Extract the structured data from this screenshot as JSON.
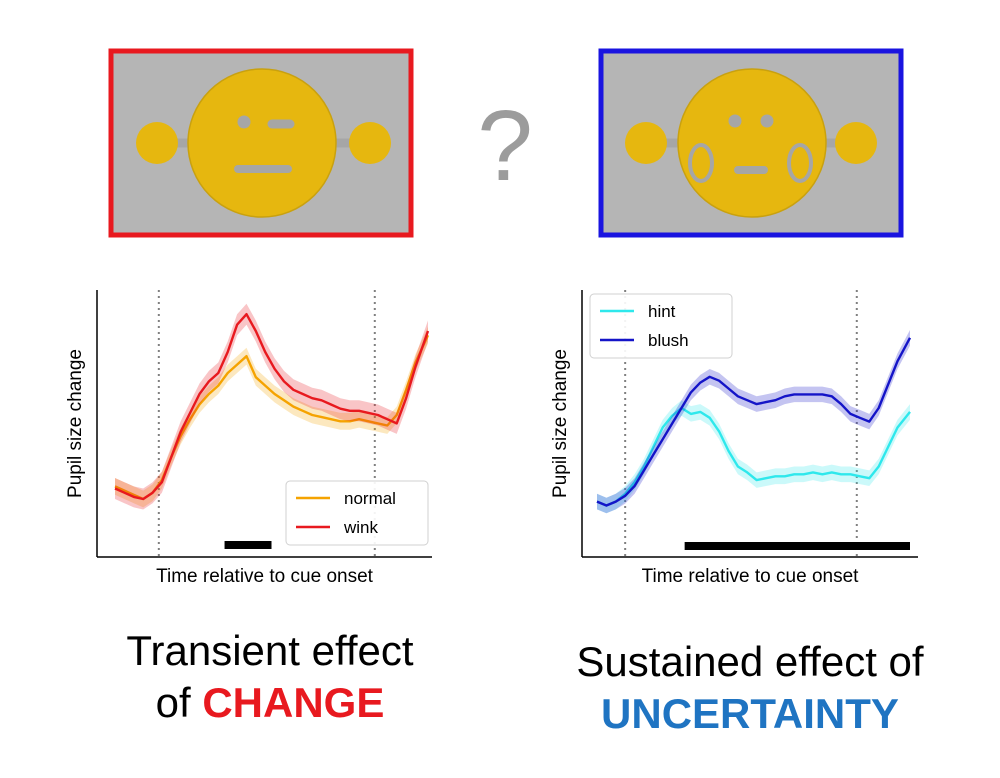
{
  "question_mark": "?",
  "panels": [
    {
      "id": "change",
      "frame_color": "#e8191f",
      "face": {
        "left_eye": "dot",
        "right_eye": "dash",
        "mouth": "wide",
        "blush": false
      },
      "caption_line1": "Transient effect",
      "caption_prefix": "of ",
      "caption_keyword": "CHANGE",
      "keyword_color": "#e8191f"
    },
    {
      "id": "uncertainty",
      "frame_color": "#1a14e0",
      "face": {
        "left_eye": "dot",
        "right_eye": "dot",
        "mouth": "narrow",
        "blush": true
      },
      "caption_line1": "Sustained effect of",
      "caption_prefix": "",
      "caption_keyword": "UNCERTAINTY",
      "keyword_color": "#1f74c2"
    }
  ],
  "colors": {
    "background_gray": "#b5b5b5",
    "face_yellow": "#e6b70f",
    "feature_gray": "#a6a6a6",
    "normal": "#f5a300",
    "wink": "#e8191f",
    "hint": "#2ee8ec",
    "blush": "#1414c8"
  },
  "chart_data": [
    {
      "type": "line",
      "xlabel": "Time relative to cue onset",
      "ylabel": "Pupil size change",
      "xlim": [
        0,
        100
      ],
      "ylim": [
        0,
        100
      ],
      "x_ticks_shown": false,
      "y_ticks_shown": false,
      "vlines": [
        14,
        83
      ],
      "legend": "lower-right",
      "significance_bar": [
        35,
        50
      ],
      "x": [
        0,
        3,
        6,
        9,
        12,
        15,
        18,
        21,
        24,
        27,
        30,
        33,
        36,
        39,
        42,
        45,
        48,
        51,
        54,
        57,
        60,
        63,
        66,
        69,
        72,
        75,
        78,
        81,
        84,
        87,
        90,
        93,
        96,
        100
      ],
      "series": [
        {
          "name": "normal",
          "color": "#f5a300",
          "values": [
            16,
            14,
            12,
            10,
            13,
            19,
            30,
            40,
            48,
            55,
            60,
            64,
            70,
            74,
            78,
            68,
            64,
            60,
            57,
            54,
            52,
            50,
            49,
            48,
            47,
            47,
            48,
            47,
            46,
            45,
            50,
            62,
            75,
            88
          ],
          "band": 4
        },
        {
          "name": "wink",
          "color": "#e8191f",
          "values": [
            15,
            13,
            11,
            10,
            13,
            18,
            30,
            42,
            51,
            60,
            66,
            70,
            80,
            93,
            98,
            90,
            80,
            72,
            66,
            62,
            60,
            58,
            57,
            55,
            53,
            52,
            52,
            51,
            50,
            48,
            46,
            58,
            73,
            90
          ],
          "band": 5
        }
      ]
    },
    {
      "type": "line",
      "xlabel": "Time relative to cue onset",
      "ylabel": "Pupil size change",
      "xlim": [
        0,
        100
      ],
      "ylim": [
        0,
        100
      ],
      "x_ticks_shown": false,
      "y_ticks_shown": false,
      "vlines": [
        9,
        83
      ],
      "legend": "upper-left",
      "significance_bar": [
        28,
        100
      ],
      "x": [
        0,
        3,
        6,
        9,
        12,
        15,
        18,
        21,
        24,
        27,
        30,
        33,
        36,
        39,
        42,
        45,
        48,
        51,
        54,
        57,
        60,
        63,
        66,
        69,
        72,
        75,
        78,
        81,
        84,
        87,
        90,
        93,
        96,
        100
      ],
      "series": [
        {
          "name": "hint",
          "color": "#2ee8ec",
          "values": [
            12,
            10,
            12,
            16,
            22,
            30,
            40,
            50,
            56,
            60,
            57,
            58,
            55,
            48,
            38,
            30,
            27,
            23,
            24,
            25,
            25,
            26,
            26,
            27,
            26,
            27,
            26,
            26,
            25,
            24,
            30,
            40,
            50,
            58
          ],
          "band": 4
        },
        {
          "name": "blush",
          "color": "#1414c8",
          "values": [
            12,
            10,
            12,
            15,
            20,
            28,
            36,
            44,
            52,
            60,
            68,
            73,
            76,
            74,
            70,
            66,
            64,
            62,
            63,
            64,
            66,
            67,
            67,
            67,
            67,
            66,
            62,
            57,
            55,
            53,
            60,
            72,
            84,
            96
          ],
          "band": 4
        }
      ]
    }
  ]
}
